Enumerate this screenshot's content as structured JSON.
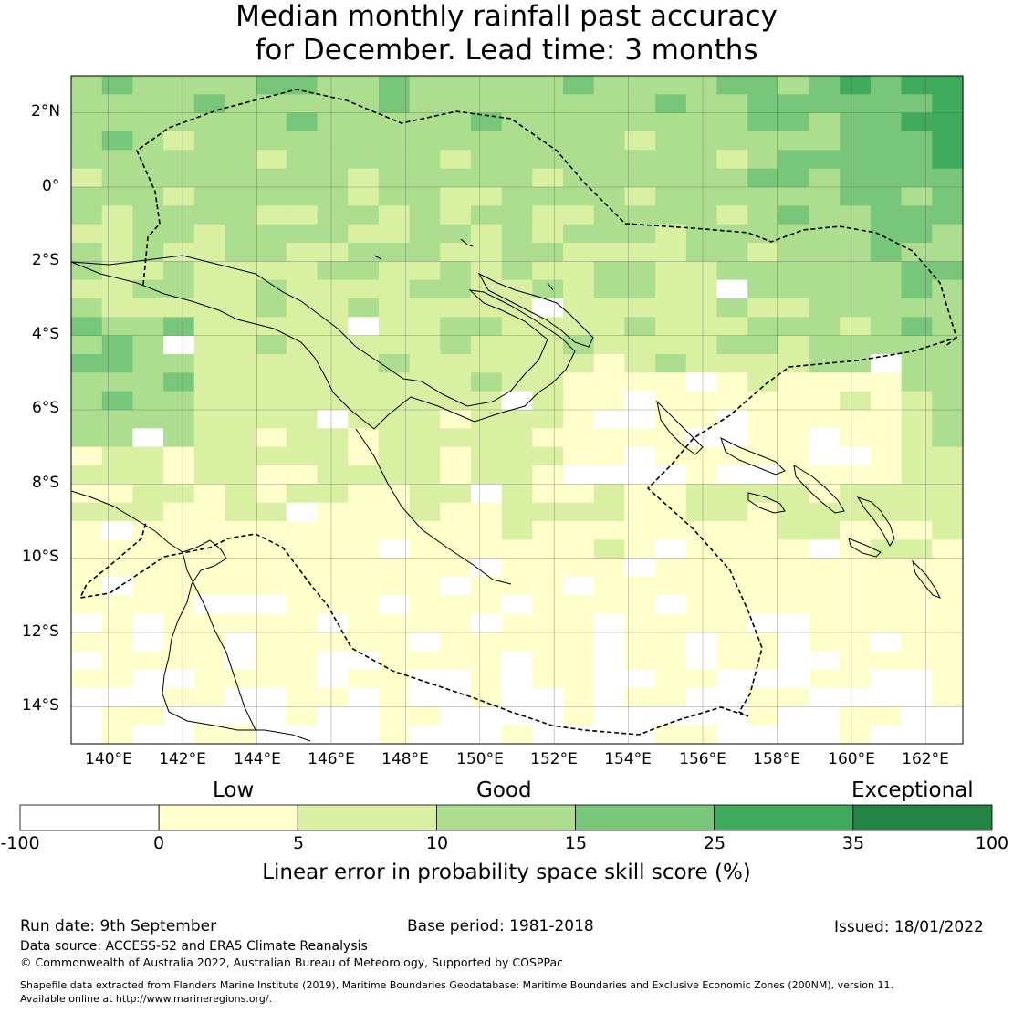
{
  "title": {
    "line1": "Median monthly rainfall past accuracy",
    "line2": "for December. Lead time: 3 months"
  },
  "map": {
    "extent": {
      "lon": [
        139,
        163
      ],
      "lat": [
        -15,
        3
      ]
    },
    "lon_ticks": [
      140,
      142,
      144,
      146,
      148,
      150,
      152,
      154,
      156,
      158,
      160,
      162
    ],
    "lat_ticks": [
      2,
      0,
      -2,
      -4,
      -6,
      -8,
      -10,
      -12,
      -14
    ],
    "lon_labels": [
      "140°E",
      "142°E",
      "144°E",
      "146°E",
      "148°E",
      "150°E",
      "152°E",
      "154°E",
      "156°E",
      "158°E",
      "160°E",
      "162°E"
    ],
    "lat_labels": [
      "2°N",
      "0°",
      "2°S",
      "4°S",
      "6°S",
      "8°S",
      "10°S",
      "12°S",
      "14°S"
    ],
    "grid": true,
    "boundary_style": "dashed"
  },
  "colorbar": {
    "categories": [
      "Low",
      "Good",
      "Exceptional"
    ],
    "tick_labels": [
      "-100",
      "0",
      "5",
      "10",
      "15",
      "25",
      "35",
      "100"
    ],
    "colors": [
      "#ffffff",
      "#ffffcc",
      "#d9f0a3",
      "#addd8e",
      "#78c679",
      "#41ab5d",
      "#238443"
    ],
    "label": "Linear error in probability space skill score (%)"
  },
  "footer": {
    "run_date": "Run date: 9th September",
    "base_period": "Base period: 1981-2018",
    "issued": "Issued: 18/01/2022",
    "data_source": "Data source: ACCESS-S2 and ERA5 Climate Reanalysis",
    "copyright": "© Commonwealth of Australia 2022, Australian Bureau of Meteorology, Supported by COSPPac",
    "shapefile_line1": "Shapefile data extracted from Flanders Marine Institute (2019), Maritime Boundaries Geodatabase: Maritime Boundaries and Exclusive Economic Zones (200NM), version 11.",
    "shapefile_line2": "Available online at http://www.marineregions.org/."
  }
}
